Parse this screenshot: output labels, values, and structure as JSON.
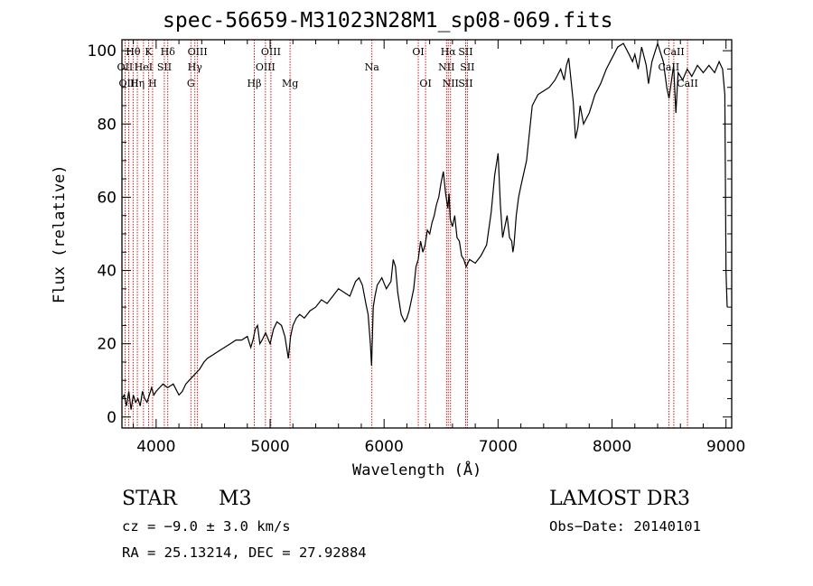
{
  "chart_data": {
    "type": "line",
    "title": "spec-56659-M31023N28M1_sp08-069.fits",
    "xlabel": "Wavelength (Å)",
    "ylabel": "Flux (relative)",
    "xlim": [
      3700,
      9050
    ],
    "ylim": [
      -3,
      103
    ],
    "xticks": [
      4000,
      5000,
      6000,
      7000,
      8000,
      9000
    ],
    "yticks": [
      0,
      20,
      40,
      60,
      80,
      100
    ],
    "series": [
      {
        "name": "spectrum",
        "x": [
          3700,
          3720,
          3740,
          3760,
          3780,
          3800,
          3820,
          3840,
          3860,
          3880,
          3900,
          3920,
          3940,
          3960,
          3980,
          4000,
          4030,
          4060,
          4100,
          4150,
          4200,
          4230,
          4260,
          4290,
          4320,
          4350,
          4380,
          4420,
          4450,
          4500,
          4550,
          4600,
          4650,
          4700,
          4750,
          4800,
          4830,
          4850,
          4870,
          4890,
          4910,
          4930,
          4960,
          5000,
          5030,
          5060,
          5100,
          5130,
          5160,
          5180,
          5200,
          5230,
          5260,
          5300,
          5350,
          5400,
          5450,
          5500,
          5550,
          5600,
          5650,
          5700,
          5750,
          5780,
          5810,
          5840,
          5860,
          5880,
          5890,
          5895,
          5905,
          5920,
          5940,
          5980,
          6020,
          6060,
          6080,
          6100,
          6120,
          6150,
          6180,
          6200,
          6220,
          6240,
          6260,
          6280,
          6300,
          6320,
          6340,
          6360,
          6380,
          6400,
          6420,
          6440,
          6460,
          6480,
          6500,
          6520,
          6540,
          6560,
          6570,
          6580,
          6600,
          6620,
          6640,
          6660,
          6680,
          6700,
          6720,
          6750,
          6800,
          6850,
          6900,
          6940,
          6970,
          7000,
          7020,
          7040,
          7060,
          7080,
          7100,
          7120,
          7130,
          7140,
          7160,
          7180,
          7200,
          7250,
          7300,
          7350,
          7400,
          7450,
          7500,
          7550,
          7580,
          7600,
          7620,
          7640,
          7660,
          7680,
          7700,
          7720,
          7750,
          7800,
          7850,
          7900,
          7950,
          8000,
          8050,
          8100,
          8150,
          8180,
          8200,
          8230,
          8260,
          8300,
          8320,
          8350,
          8400,
          8450,
          8480,
          8500,
          8540,
          8560,
          8580,
          8620,
          8660,
          8700,
          8750,
          8800,
          8850,
          8900,
          8940,
          8970,
          8990,
          9000,
          9005,
          9010
        ],
        "y": [
          5,
          6,
          3,
          7,
          2,
          6,
          4,
          5,
          3,
          7,
          5,
          4,
          6,
          8,
          6,
          7,
          8,
          9,
          8,
          9,
          6,
          7,
          9,
          10,
          11,
          12,
          13,
          15,
          16,
          17,
          18,
          19,
          20,
          21,
          21,
          22,
          19,
          21,
          24,
          25,
          20,
          21,
          23,
          20,
          24,
          26,
          25,
          22,
          16,
          22,
          25,
          27,
          28,
          27,
          29,
          30,
          32,
          31,
          33,
          35,
          34,
          33,
          37,
          38,
          36,
          31,
          28,
          20,
          14,
          19,
          30,
          33,
          36,
          38,
          35,
          37,
          43,
          41,
          34,
          28,
          26,
          27,
          29,
          32,
          35,
          41,
          43,
          48,
          45,
          47,
          51,
          50,
          53,
          55,
          58,
          60,
          64,
          67,
          61,
          57,
          61,
          54,
          52,
          55,
          49,
          48,
          44,
          43,
          41,
          43,
          42,
          44,
          47,
          56,
          66,
          72,
          58,
          49,
          52,
          55,
          49,
          48,
          45,
          47,
          55,
          60,
          63,
          70,
          85,
          88,
          89,
          90,
          92,
          95,
          92,
          96,
          98,
          92,
          86,
          76,
          79,
          85,
          80,
          83,
          88,
          91,
          95,
          98,
          101,
          102,
          99,
          97,
          99,
          95,
          101,
          96,
          91,
          97,
          102,
          97,
          90,
          87,
          96,
          83,
          94,
          92,
          95,
          93,
          96,
          94,
          96,
          94,
          97,
          95,
          88,
          40,
          35,
          30
        ]
      }
    ],
    "line_markers": [
      {
        "label": "Hθ",
        "x": 3798,
        "row": 0
      },
      {
        "label": "OII",
        "x": 3727,
        "row": 1
      },
      {
        "label": "OIII",
        "x": 3760,
        "row": 2
      },
      {
        "label": "Hη",
        "x": 3835,
        "row": 2
      },
      {
        "label": "HeI",
        "x": 3889,
        "row": 1
      },
      {
        "label": "K",
        "x": 3934,
        "row": 0
      },
      {
        "label": "SII",
        "x": 4072,
        "row": 1
      },
      {
        "label": "H",
        "x": 3969,
        "row": 2
      },
      {
        "label": "Hδ",
        "x": 4102,
        "row": 0
      },
      {
        "label": "OIII",
        "x": 4363,
        "row": 0
      },
      {
        "label": "Hγ",
        "x": 4340,
        "row": 1
      },
      {
        "label": "G",
        "x": 4305,
        "row": 2
      },
      {
        "label": "OIII",
        "x": 5007,
        "row": 0
      },
      {
        "label": "OIII",
        "x": 4959,
        "row": 1
      },
      {
        "label": "Hβ",
        "x": 4861,
        "row": 2
      },
      {
        "label": "Mg",
        "x": 5175,
        "row": 2
      },
      {
        "label": "Na",
        "x": 5893,
        "row": 1
      },
      {
        "label": "OI",
        "x": 6300,
        "row": 0
      },
      {
        "label": "OI",
        "x": 6364,
        "row": 2
      },
      {
        "label": "Hα",
        "x": 6563,
        "row": 0
      },
      {
        "label": "SII",
        "x": 6716,
        "row": 0
      },
      {
        "label": "NII",
        "x": 6548,
        "row": 1
      },
      {
        "label": "SII",
        "x": 6731,
        "row": 1
      },
      {
        "label": "NII",
        "x": 6583,
        "row": 2
      },
      {
        "label": "SII",
        "x": 6716,
        "row": 2
      },
      {
        "label": "CaII",
        "x": 8542,
        "row": 0
      },
      {
        "label": "CaII",
        "x": 8498,
        "row": 1
      },
      {
        "label": "CaII",
        "x": 8662,
        "row": 2
      }
    ]
  },
  "info": {
    "object_class": "STAR",
    "subclass": "M3",
    "survey": "LAMOST DR3",
    "redshift": "cz = −9.0 ± 3.0 km/s",
    "obs_date": "Obs−Date: 20140101",
    "coords": "RA =  25.13214, DEC =  27.92884"
  },
  "colors": {
    "axis": "#000000",
    "line": "#000000",
    "marker": "#cc0000"
  }
}
